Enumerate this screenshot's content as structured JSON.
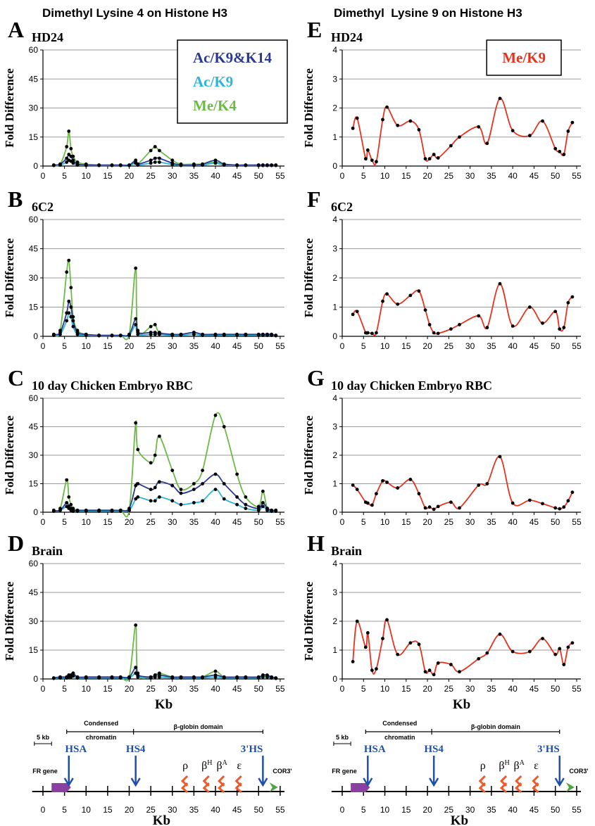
{
  "headers": [
    "Dimethyl Lysine 4 on Histone H3",
    "Dimethyl  Lysine 9 on Histone H3"
  ],
  "chart_data": [
    {
      "type": "line",
      "panel": "A",
      "title": "HD24",
      "ylabel": "Fold Difference",
      "legend": "upper right",
      "x": [
        2.5,
        4,
        5.5,
        6,
        6.5,
        7,
        8,
        10,
        13,
        16,
        18,
        20,
        21.5,
        22,
        25,
        26,
        27,
        30,
        32,
        35,
        37,
        40,
        42,
        45,
        47,
        50,
        51,
        52,
        53,
        54
      ],
      "xlim": [
        0,
        56
      ],
      "xticks": [
        0,
        5,
        10,
        15,
        20,
        25,
        30,
        35,
        40,
        45,
        50,
        55
      ],
      "ylim": [
        0,
        60
      ],
      "yticks": [
        0,
        15,
        30,
        45,
        60
      ],
      "grid": true,
      "series": [
        {
          "name": "Ac/K9&K14",
          "color": "#2a3a92",
          "values": [
            0.5,
            1,
            4,
            6,
            5,
            3,
            1,
            0.5,
            0.5,
            0.5,
            0.5,
            0.5,
            3,
            1,
            3,
            4,
            4,
            1.5,
            0.5,
            0.5,
            1,
            3,
            1,
            0.5,
            0.5,
            0.5,
            0.5,
            0.5,
            0.5,
            0.5
          ]
        },
        {
          "name": "Ac/K9",
          "color": "#2bb5d8",
          "values": [
            0.3,
            0.5,
            2,
            3,
            2.5,
            1.5,
            0.5,
            0.3,
            0.3,
            0.3,
            0.3,
            0.3,
            1.5,
            0.5,
            1.5,
            2,
            2,
            0.8,
            0.3,
            0.3,
            0.5,
            1.5,
            0.5,
            0.3,
            0.3,
            0.3,
            0.3,
            0.3,
            0.3,
            0.3
          ]
        },
        {
          "name": "Me/K4",
          "color": "#6cba45",
          "values": [
            0.5,
            1,
            10,
            18,
            9,
            5,
            2,
            1,
            0.5,
            0.5,
            0.5,
            0.5,
            2,
            1,
            8,
            10,
            8,
            3,
            1,
            1,
            1,
            2,
            1,
            0.5,
            0.5,
            0.5,
            0.5,
            0.5,
            0.5,
            0.5
          ]
        }
      ]
    },
    {
      "type": "line",
      "panel": "B",
      "title": "6C2",
      "ylabel": "Fold Difference",
      "x": [
        2.5,
        4,
        5.5,
        6,
        6.5,
        7,
        8,
        10,
        13,
        16,
        18,
        20,
        21.5,
        22,
        25,
        26,
        27,
        30,
        32,
        35,
        37,
        40,
        42,
        45,
        47,
        50,
        51,
        52,
        53,
        54
      ],
      "xlim": [
        0,
        56
      ],
      "xticks": [
        0,
        5,
        10,
        15,
        20,
        25,
        30,
        35,
        40,
        45,
        50,
        55
      ],
      "ylim": [
        0,
        60
      ],
      "yticks": [
        0,
        15,
        30,
        45,
        60
      ],
      "grid": true,
      "series": [
        {
          "color": "#2a3a92",
          "values": [
            1,
            2,
            12,
            18,
            15,
            8,
            2,
            1,
            0.5,
            0.5,
            0.5,
            1,
            9,
            2,
            2,
            2,
            1.5,
            1,
            1,
            2,
            1,
            1,
            1,
            1,
            1,
            1,
            1,
            1,
            1,
            0.5
          ]
        },
        {
          "color": "#2bb5d8",
          "values": [
            0.5,
            1,
            8,
            12,
            10,
            5,
            1,
            0.5,
            0.3,
            0.3,
            0.3,
            0.5,
            6,
            1,
            1,
            1,
            1,
            0.5,
            0.5,
            1,
            0.5,
            0.5,
            0.5,
            0.5,
            0.5,
            0.5,
            0.5,
            0.5,
            0.5,
            0.3
          ]
        },
        {
          "color": "#6cba45",
          "values": [
            1,
            3,
            33,
            39,
            25,
            10,
            3,
            1,
            0.5,
            0.5,
            0.5,
            1,
            35,
            3,
            5,
            6,
            2,
            1,
            1,
            2,
            1,
            1,
            1,
            1,
            1,
            1,
            1,
            1,
            1,
            0.5
          ]
        }
      ]
    },
    {
      "type": "line",
      "panel": "C",
      "title": "10 day Chicken Embryo RBC",
      "ylabel": "Fold Difference",
      "x": [
        2.5,
        4,
        5.5,
        6,
        6.5,
        7,
        8,
        10,
        13,
        16,
        18,
        20,
        21.5,
        22,
        25,
        26,
        27,
        30,
        32,
        35,
        37,
        40,
        42,
        45,
        47,
        50,
        51,
        52,
        53,
        54
      ],
      "xlim": [
        0,
        56
      ],
      "xticks": [
        0,
        5,
        10,
        15,
        20,
        25,
        30,
        35,
        40,
        45,
        50,
        55
      ],
      "ylim": [
        0,
        60
      ],
      "yticks": [
        0,
        15,
        30,
        45,
        60
      ],
      "grid": true,
      "series": [
        {
          "color": "#2a3a92",
          "values": [
            1,
            1,
            5,
            3,
            2,
            1,
            1,
            1,
            1,
            1,
            1,
            2,
            14,
            15,
            12,
            13,
            16,
            14,
            10,
            12,
            15,
            20,
            15,
            8,
            4,
            2,
            5,
            2,
            1,
            1
          ]
        },
        {
          "color": "#2bb5d8",
          "values": [
            0.5,
            1,
            3,
            2,
            1,
            0.5,
            0.5,
            0.5,
            0.5,
            0.5,
            0.5,
            1,
            7,
            8,
            6,
            6,
            8,
            6,
            4,
            5,
            6,
            12,
            7,
            4,
            2,
            1,
            3,
            1,
            0.5,
            0.5
          ]
        },
        {
          "color": "#6cba45",
          "values": [
            1,
            2,
            17,
            8,
            4,
            2,
            1,
            1,
            1,
            1,
            1,
            1,
            47,
            33,
            26,
            30,
            40,
            22,
            12,
            15,
            22,
            51,
            45,
            20,
            8,
            3,
            11,
            2,
            1,
            1
          ]
        }
      ]
    },
    {
      "type": "line",
      "panel": "D",
      "title": "Brain",
      "ylabel": "Fold Difference",
      "xlabel": "Kb",
      "x": [
        2.5,
        4,
        5.5,
        6,
        6.5,
        7,
        8,
        10,
        13,
        16,
        18,
        20,
        21.5,
        22,
        25,
        26,
        27,
        30,
        32,
        35,
        37,
        40,
        42,
        45,
        47,
        50,
        51,
        52,
        53,
        54
      ],
      "xlim": [
        0,
        56
      ],
      "xticks": [
        0,
        5,
        10,
        15,
        20,
        25,
        30,
        35,
        40,
        45,
        50,
        55
      ],
      "ylim": [
        0,
        60
      ],
      "yticks": [
        0,
        15,
        30,
        45,
        60
      ],
      "grid": true,
      "series": [
        {
          "color": "#2a3a92",
          "values": [
            0.5,
            1,
            1,
            2,
            2,
            3,
            1,
            1,
            1,
            1,
            1,
            1,
            6,
            2,
            1,
            2,
            2,
            1,
            1,
            1,
            1,
            2,
            1,
            1,
            1,
            1,
            2,
            2,
            1,
            0.5
          ]
        },
        {
          "color": "#2bb5d8",
          "values": [
            0.3,
            0.5,
            0.5,
            1,
            1,
            1.5,
            0.5,
            0.5,
            0.5,
            0.5,
            0.5,
            0.5,
            3,
            1,
            0.5,
            1,
            1,
            0.5,
            0.5,
            0.5,
            0.5,
            1,
            0.5,
            0.5,
            0.5,
            0.5,
            1,
            1,
            0.5,
            0.3
          ]
        },
        {
          "color": "#6cba45",
          "values": [
            0.5,
            1,
            1,
            2,
            2,
            3,
            1,
            1,
            1,
            1,
            1,
            1,
            28,
            3,
            1,
            2,
            3,
            1,
            1,
            1,
            1,
            4,
            1,
            1,
            1,
            1,
            2,
            1,
            1,
            0.5
          ]
        }
      ]
    },
    {
      "type": "line",
      "panel": "E",
      "title": "HD24",
      "ylabel": "Fold Difference",
      "legend": "upper right",
      "x": [
        2.5,
        3.5,
        5.5,
        6,
        7,
        8,
        9.5,
        10.5,
        13,
        16,
        18,
        19.5,
        20.5,
        21.5,
        22.5,
        25.5,
        27.5,
        32,
        34,
        37,
        40,
        44,
        47,
        50,
        51,
        52,
        53,
        54
      ],
      "xlim": [
        0,
        56
      ],
      "xticks": [
        0,
        5,
        10,
        15,
        20,
        25,
        30,
        35,
        40,
        45,
        50,
        55
      ],
      "ylim": [
        0,
        4
      ],
      "yticks": [
        0,
        1,
        2,
        3,
        4
      ],
      "grid": true,
      "series": [
        {
          "name": "Me/K9",
          "color": "#e8321e",
          "values": [
            1.3,
            1.65,
            0.25,
            0.55,
            0.2,
            0.15,
            1.6,
            2.03,
            1.4,
            1.55,
            1.25,
            0.25,
            0.25,
            0.4,
            0.28,
            0.7,
            1.0,
            1.35,
            0.78,
            2.33,
            1.22,
            1.05,
            1.55,
            0.6,
            0.5,
            0.4,
            1.2,
            1.5
          ]
        }
      ]
    },
    {
      "type": "line",
      "panel": "F",
      "title": "6C2",
      "ylabel": "Fold Difference",
      "x": [
        2.5,
        3.5,
        5.5,
        6,
        7,
        8,
        9.5,
        10.5,
        13,
        16,
        18,
        19.5,
        20.5,
        21.5,
        22.5,
        25.5,
        27.5,
        32,
        34,
        37,
        40,
        44,
        47,
        50,
        51,
        52,
        53,
        54
      ],
      "xlim": [
        0,
        56
      ],
      "xticks": [
        0,
        5,
        10,
        15,
        20,
        25,
        30,
        35,
        40,
        45,
        50,
        55
      ],
      "ylim": [
        0,
        4
      ],
      "yticks": [
        0,
        1,
        2,
        3,
        4
      ],
      "grid": true,
      "series": [
        {
          "color": "#e8321e",
          "values": [
            0.75,
            0.85,
            0.12,
            0.12,
            0.1,
            0.12,
            1.2,
            1.45,
            1.1,
            1.4,
            1.55,
            0.9,
            0.4,
            0.12,
            0.1,
            0.25,
            0.4,
            0.7,
            0.3,
            1.8,
            0.35,
            1.0,
            0.45,
            0.85,
            0.25,
            0.3,
            1.15,
            1.35
          ]
        }
      ]
    },
    {
      "type": "line",
      "panel": "G",
      "title": "10 day Chicken Embryo RBC",
      "ylabel": "Fold Difference",
      "x": [
        2.5,
        3.5,
        5.5,
        6,
        7,
        8,
        9.5,
        10.5,
        13,
        16,
        18,
        19.5,
        20.5,
        21.5,
        22.5,
        25.5,
        27.5,
        32,
        34,
        37,
        40,
        44,
        47,
        50,
        51,
        52,
        53,
        54
      ],
      "xlim": [
        0,
        56
      ],
      "xticks": [
        0,
        5,
        10,
        15,
        20,
        25,
        30,
        35,
        40,
        45,
        50,
        55
      ],
      "ylim": [
        0,
        4
      ],
      "yticks": [
        0,
        1,
        2,
        3,
        4
      ],
      "grid": true,
      "series": [
        {
          "color": "#e8321e",
          "values": [
            0.95,
            0.8,
            0.35,
            0.32,
            0.25,
            0.65,
            1.1,
            1.05,
            0.85,
            1.15,
            0.65,
            0.15,
            0.18,
            0.1,
            0.2,
            0.35,
            0.15,
            0.95,
            1.0,
            1.95,
            0.32,
            0.42,
            0.3,
            0.15,
            0.12,
            0.18,
            0.4,
            0.7
          ]
        }
      ]
    },
    {
      "type": "line",
      "panel": "H",
      "title": "Brain",
      "ylabel": "Fold Difference",
      "xlabel": "Kb",
      "x": [
        2.5,
        3.5,
        5.5,
        6,
        7,
        8,
        9.5,
        10.5,
        13,
        16,
        18,
        19.5,
        20.5,
        21.5,
        22.5,
        25.5,
        27.5,
        32,
        34,
        37,
        40,
        44,
        47,
        50,
        51,
        52,
        53,
        54
      ],
      "xlim": [
        0,
        56
      ],
      "xticks": [
        0,
        5,
        10,
        15,
        20,
        25,
        30,
        35,
        40,
        45,
        50,
        55
      ],
      "ylim": [
        0,
        4
      ],
      "yticks": [
        0,
        1,
        2,
        3,
        4
      ],
      "grid": true,
      "series": [
        {
          "color": "#e8321e",
          "values": [
            0.6,
            2.0,
            1.1,
            1.6,
            0.3,
            0.35,
            1.4,
            2.05,
            0.85,
            1.25,
            1.2,
            0.25,
            0.3,
            0.15,
            0.55,
            0.5,
            0.25,
            0.7,
            0.9,
            1.55,
            0.95,
            0.95,
            1.4,
            0.85,
            1.05,
            0.5,
            1.1,
            1.25
          ]
        }
      ]
    }
  ],
  "gene_map": {
    "scale_bar": "5 kb",
    "condensed": [
      "Condensed",
      "chromatin"
    ],
    "domain": "β-globin domain",
    "sites": [
      "HSA",
      "HS4",
      "3'HS"
    ],
    "fr_gene": "FR gene",
    "cor": "COR3'",
    "genes": [
      {
        "text": "ρ"
      },
      {
        "text": "β",
        "sup": "H"
      },
      {
        "text": "β",
        "sup": "A"
      },
      {
        "text": "ε"
      }
    ],
    "xticks": [
      0,
      5,
      10,
      15,
      20,
      25,
      30,
      35,
      40,
      45,
      50,
      55
    ],
    "xlabel": "Kb"
  }
}
